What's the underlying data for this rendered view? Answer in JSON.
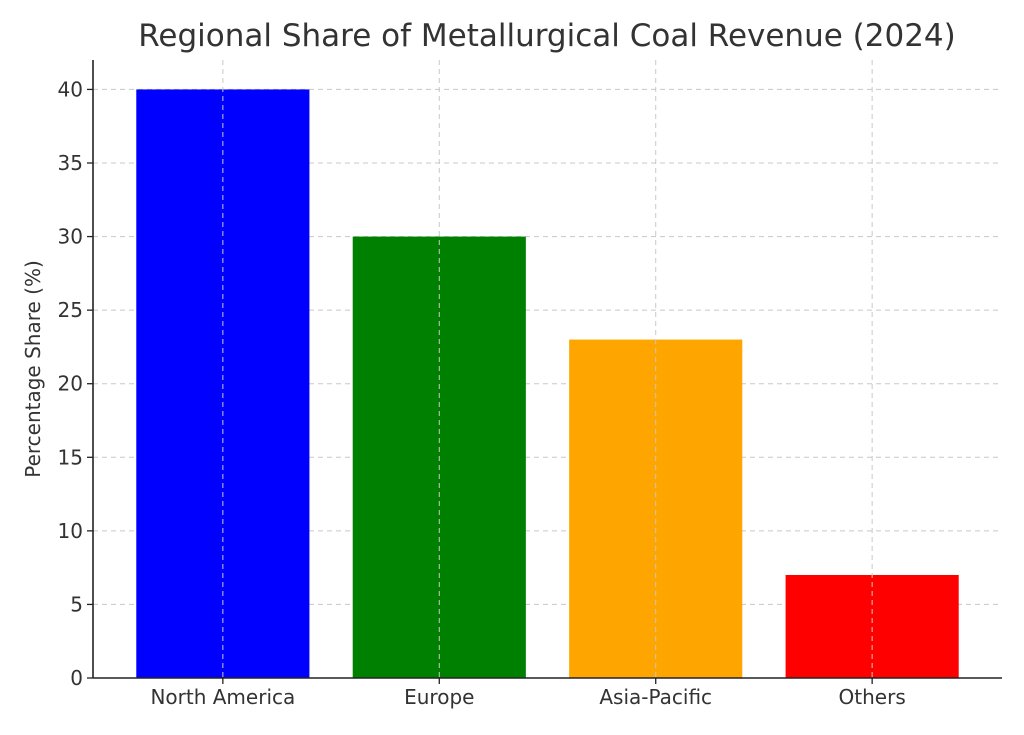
{
  "chart_data": {
    "type": "bar",
    "title": "Regional Share of Metallurgical Coal Revenue (2024)",
    "xlabel": "",
    "ylabel": "Percentage Share (%)",
    "categories": [
      "North America",
      "Europe",
      "Asia-Pacific",
      "Others"
    ],
    "values": [
      40,
      30,
      23,
      7
    ],
    "colors": [
      "#0000ff",
      "#008000",
      "#ffa500",
      "#ff0000"
    ],
    "ylim": [
      0,
      42
    ],
    "yticks": [
      0,
      5,
      10,
      15,
      20,
      25,
      30,
      35,
      40
    ],
    "grid": true,
    "legend": "none"
  }
}
